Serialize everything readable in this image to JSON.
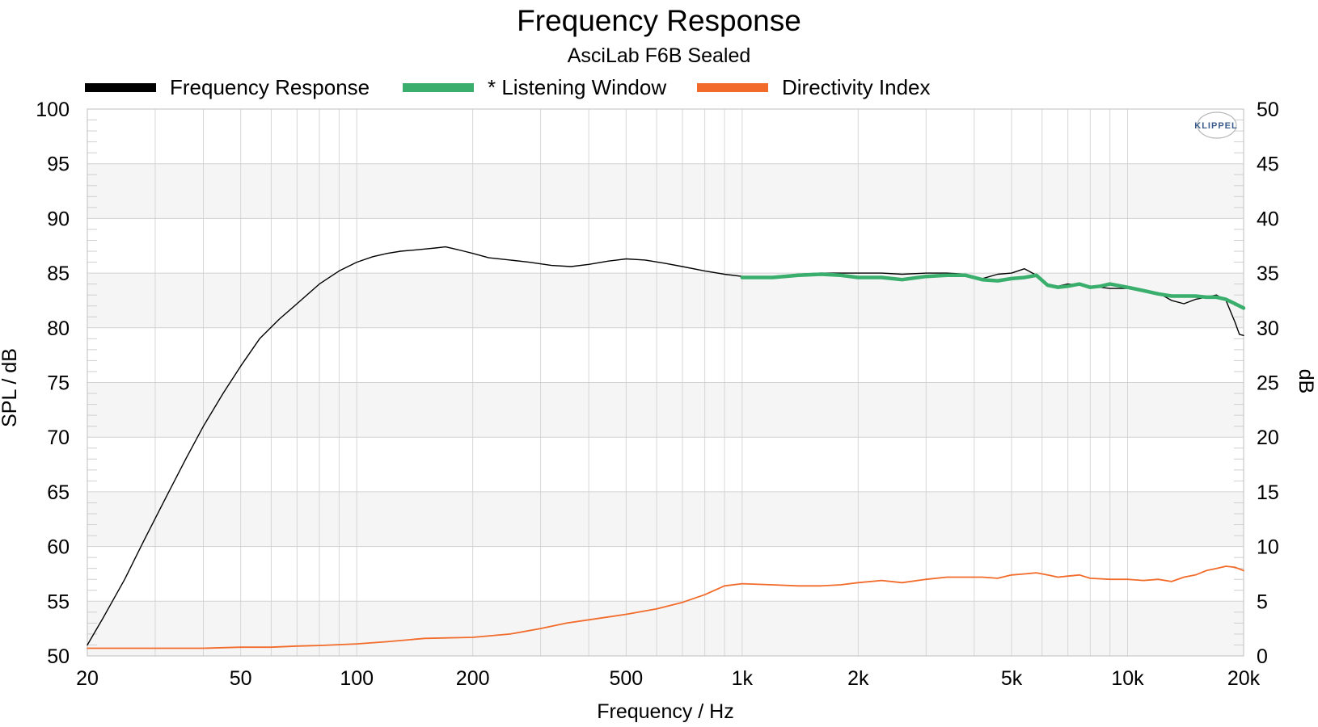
{
  "chart_data": {
    "type": "line",
    "title": "Frequency Response",
    "subtitle": "AsciLab F6B Sealed",
    "xlabel": "Frequency / Hz",
    "ylabel": "SPL / dB",
    "y2label": "dB",
    "xscale": "log",
    "xlim": [
      20,
      20000
    ],
    "ylim": [
      50,
      100
    ],
    "y2lim": [
      0,
      50
    ],
    "grid": true,
    "legend_position": "top",
    "logo": "KLIPPEL",
    "x_tick_labels": [
      {
        "value": 20,
        "label": "20"
      },
      {
        "value": 50,
        "label": "50"
      },
      {
        "value": 100,
        "label": "100"
      },
      {
        "value": 200,
        "label": "200"
      },
      {
        "value": 500,
        "label": "500"
      },
      {
        "value": 1000,
        "label": "1k"
      },
      {
        "value": 2000,
        "label": "2k"
      },
      {
        "value": 5000,
        "label": "5k"
      },
      {
        "value": 10000,
        "label": "10k"
      },
      {
        "value": 20000,
        "label": "20k"
      }
    ],
    "y_ticks": [
      "50",
      "55",
      "60",
      "65",
      "70",
      "75",
      "80",
      "85",
      "90",
      "95",
      "100"
    ],
    "y2_ticks": [
      "0",
      "5",
      "10",
      "15",
      "20",
      "25",
      "30",
      "35",
      "40",
      "45",
      "50"
    ],
    "series": [
      {
        "name": "Frequency Response",
        "color": "#000000",
        "axis": "left",
        "x": [
          20,
          22,
          25,
          28,
          32,
          36,
          40,
          45,
          50,
          56,
          63,
          70,
          80,
          90,
          100,
          110,
          120,
          130,
          140,
          150,
          160,
          170,
          180,
          190,
          200,
          220,
          250,
          280,
          320,
          360,
          400,
          450,
          500,
          560,
          630,
          700,
          800,
          900,
          1000,
          1200,
          1400,
          1600,
          1800,
          2000,
          2300,
          2600,
          3000,
          3400,
          3800,
          4200,
          4600,
          5000,
          5400,
          5800,
          6200,
          6600,
          7000,
          7500,
          8000,
          8500,
          9000,
          10000,
          11000,
          12000,
          13000,
          14000,
          15000,
          16000,
          17000,
          18000,
          19000,
          19500,
          20000
        ],
        "y": [
          51.0,
          53.5,
          57.0,
          60.5,
          64.5,
          68.0,
          71.0,
          74.0,
          76.5,
          79.0,
          80.8,
          82.2,
          84.0,
          85.2,
          86.0,
          86.5,
          86.8,
          87.0,
          87.1,
          87.2,
          87.3,
          87.4,
          87.2,
          87.0,
          86.8,
          86.4,
          86.2,
          86.0,
          85.7,
          85.6,
          85.8,
          86.1,
          86.3,
          86.2,
          85.9,
          85.6,
          85.2,
          84.9,
          84.7,
          84.7,
          84.9,
          85.0,
          85.0,
          85.0,
          85.0,
          84.9,
          85.0,
          85.0,
          84.9,
          84.5,
          84.9,
          85.0,
          85.4,
          84.8,
          84.0,
          83.8,
          84.0,
          83.9,
          83.8,
          83.7,
          83.6,
          83.6,
          83.4,
          83.2,
          82.5,
          82.2,
          82.6,
          82.8,
          83.0,
          82.5,
          80.5,
          79.4,
          79.3
        ]
      },
      {
        "name": "* Listening Window",
        "color": "#3aae6c",
        "axis": "left",
        "x": [
          1000,
          1200,
          1400,
          1600,
          1800,
          2000,
          2300,
          2600,
          3000,
          3400,
          3800,
          4200,
          4600,
          5000,
          5400,
          5800,
          6200,
          6600,
          7000,
          7500,
          8000,
          8500,
          9000,
          10000,
          11000,
          12000,
          13000,
          14000,
          15000,
          16000,
          17000,
          18000,
          19000,
          20000
        ],
        "y": [
          84.6,
          84.6,
          84.8,
          84.9,
          84.8,
          84.6,
          84.6,
          84.4,
          84.7,
          84.8,
          84.8,
          84.4,
          84.3,
          84.5,
          84.6,
          84.8,
          83.9,
          83.7,
          83.8,
          84.0,
          83.7,
          83.8,
          84.0,
          83.7,
          83.4,
          83.1,
          82.9,
          82.9,
          82.9,
          82.8,
          82.8,
          82.6,
          82.2,
          81.8
        ]
      },
      {
        "name": "Directivity Index",
        "color": "#f26b2a",
        "axis": "right",
        "x": [
          20,
          30,
          40,
          50,
          60,
          70,
          80,
          100,
          120,
          150,
          200,
          250,
          300,
          350,
          400,
          500,
          600,
          700,
          800,
          900,
          1000,
          1200,
          1400,
          1600,
          1800,
          2000,
          2300,
          2600,
          3000,
          3400,
          3800,
          4200,
          4600,
          5000,
          5400,
          5800,
          6200,
          6600,
          7000,
          7500,
          8000,
          9000,
          10000,
          11000,
          12000,
          13000,
          14000,
          15000,
          16000,
          17000,
          18000,
          19000,
          20000
        ],
        "y": [
          0.7,
          0.7,
          0.7,
          0.8,
          0.8,
          0.9,
          0.95,
          1.1,
          1.3,
          1.6,
          1.7,
          2.0,
          2.5,
          3.0,
          3.3,
          3.8,
          4.3,
          4.9,
          5.6,
          6.4,
          6.6,
          6.5,
          6.4,
          6.4,
          6.5,
          6.7,
          6.9,
          6.7,
          7.0,
          7.2,
          7.2,
          7.2,
          7.1,
          7.4,
          7.5,
          7.6,
          7.4,
          7.2,
          7.3,
          7.4,
          7.1,
          7.0,
          7.0,
          6.9,
          7.0,
          6.8,
          7.2,
          7.4,
          7.8,
          8.0,
          8.2,
          8.1,
          7.8
        ]
      }
    ]
  }
}
